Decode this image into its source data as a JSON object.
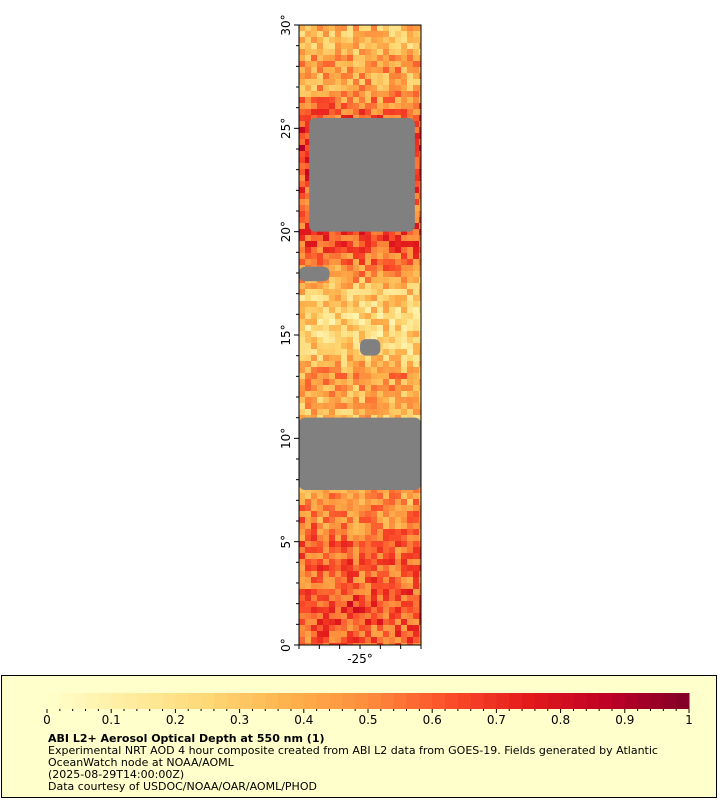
{
  "map": {
    "lat_ticks": [
      {
        "value": 0,
        "label": "0°"
      },
      {
        "value": 5,
        "label": "5°"
      },
      {
        "value": 10,
        "label": "10°"
      },
      {
        "value": 15,
        "label": "15°"
      },
      {
        "value": 20,
        "label": "20°"
      },
      {
        "value": 25,
        "label": "25°"
      },
      {
        "value": 30,
        "label": "30°"
      }
    ],
    "lat_range": [
      0,
      30
    ],
    "lon_ticks": [
      {
        "value": -25,
        "label": "-25°"
      }
    ],
    "lon_range": [
      -28,
      -22
    ],
    "no_data_color": "#808080",
    "bands": [
      {
        "lat": 29,
        "aod": 0.35
      },
      {
        "lat": 28,
        "aod": 0.45
      },
      {
        "lat": 27,
        "aod": 0.4
      },
      {
        "lat": 26,
        "aod": 0.55
      },
      {
        "lat": 25,
        "aod": 0.65
      },
      {
        "lat": 24,
        "aod": 0.75
      },
      {
        "lat": 23,
        "aod": 0.7
      },
      {
        "lat": 22,
        "aod": 0.6
      },
      {
        "lat": 21,
        "aod": 0.55
      },
      {
        "lat": 20,
        "aod": 0.65
      },
      {
        "lat": 19,
        "aod": 0.6
      },
      {
        "lat": 18,
        "aod": 0.45
      },
      {
        "lat": 17,
        "aod": 0.3
      },
      {
        "lat": 16,
        "aod": 0.25
      },
      {
        "lat": 15,
        "aod": 0.25
      },
      {
        "lat": 14,
        "aod": 0.3
      },
      {
        "lat": 13,
        "aod": 0.45
      },
      {
        "lat": 12,
        "aod": 0.4
      },
      {
        "lat": 11,
        "aod": 0.35
      },
      {
        "lat": 10,
        "aod": 0.35
      },
      {
        "lat": 9,
        "aod": 0.4
      },
      {
        "lat": 8,
        "aod": 0.5
      },
      {
        "lat": 7,
        "aod": 0.45
      },
      {
        "lat": 6,
        "aod": 0.5
      },
      {
        "lat": 5,
        "aod": 0.55
      },
      {
        "lat": 4,
        "aod": 0.6
      },
      {
        "lat": 3,
        "aod": 0.55
      },
      {
        "lat": 2,
        "aod": 0.65
      },
      {
        "lat": 1,
        "aod": 0.6
      },
      {
        "lat": 0,
        "aod": 0.55
      }
    ],
    "no_data_regions": [
      {
        "lat_min": 20.0,
        "lat_max": 25.5,
        "lon_min": -27.5,
        "lon_max": -22.3
      },
      {
        "lat_min": 7.5,
        "lat_max": 11.0,
        "lon_min": -28.0,
        "lon_max": -22.0
      },
      {
        "lat_min": 17.6,
        "lat_max": 18.3,
        "lon_min": -28.0,
        "lon_max": -26.5
      },
      {
        "lat_min": 14.0,
        "lat_max": 14.8,
        "lon_min": -25.0,
        "lon_max": -24.0
      }
    ]
  },
  "colorbar": {
    "min": 0,
    "max": 1,
    "tick_labels": [
      "0",
      "0.1",
      "0.2",
      "0.3",
      "0.4",
      "0.5",
      "0.6",
      "0.7",
      "0.8",
      "0.9",
      "1"
    ],
    "colors": [
      "#ffffcc",
      "#ffeda0",
      "#fed976",
      "#feb24c",
      "#fd8d3c",
      "#fc4e2a",
      "#e31a1c",
      "#bd0026",
      "#800026"
    ]
  },
  "caption": {
    "title": "ABI L2+ Aerosol Optical Depth at 550 nm (1)",
    "description": "Experimental NRT AOD 4 hour composite created from ABI L2 data from GOES-19. Fields generated by Atlantic OceanWatch node at NOAA/AOML",
    "time": "(2025-08-29T14:00:00Z)",
    "credit": "Data courtesy of USDOC/NOAA/OAR/AOML/PHOD"
  }
}
